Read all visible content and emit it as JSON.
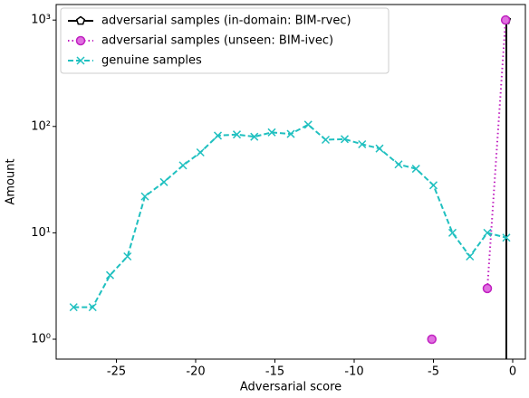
{
  "chart_data": {
    "type": "line",
    "xlabel": "Adversarial score",
    "ylabel": "Amount",
    "xlim": [
      -28.8,
      0.8
    ],
    "xticks": [
      -25,
      -20,
      -15,
      -10,
      -5,
      0
    ],
    "ylim": [
      0.65,
      1400
    ],
    "log_y": true,
    "yticks": [
      {
        "value": 1,
        "label": "10⁰"
      },
      {
        "value": 10,
        "label": "10¹"
      },
      {
        "value": 100,
        "label": "10²"
      },
      {
        "value": 1000,
        "label": "10³"
      }
    ],
    "legend": "upper left",
    "series": [
      {
        "name": "adversarial samples (in-domain: BIM-rvec)",
        "color": "#000000",
        "dash": "solid",
        "marker": "pentagon",
        "drop_to_axis": true,
        "x": [
          -0.4
        ],
        "values": [
          1000
        ]
      },
      {
        "name": "adversarial samples (unseen: BIM-ivec)",
        "color": "#c020c0",
        "dash": "dotted",
        "marker": "circle",
        "x": [
          -5.1,
          -3.0,
          -1.6,
          -0.45
        ],
        "values": [
          1,
          null,
          3,
          1000
        ]
      },
      {
        "name": "genuine samples",
        "color": "#20c0c0",
        "dash": "dashed",
        "marker": "x",
        "x": [
          -27.7,
          -26.5,
          -25.4,
          -24.3,
          -23.2,
          -22.0,
          -20.8,
          -19.7,
          -18.6,
          -17.4,
          -16.3,
          -15.2,
          -14.0,
          -12.9,
          -11.8,
          -10.6,
          -9.5,
          -8.4,
          -7.2,
          -6.1,
          -5.0,
          -3.8,
          -2.7,
          -1.6,
          -0.4
        ],
        "values": [
          2,
          2,
          4,
          6,
          22,
          30,
          43,
          57,
          82,
          84,
          80,
          88,
          85,
          104,
          75,
          76,
          68,
          62,
          44,
          40,
          28,
          10,
          6,
          10,
          9
        ]
      }
    ]
  }
}
